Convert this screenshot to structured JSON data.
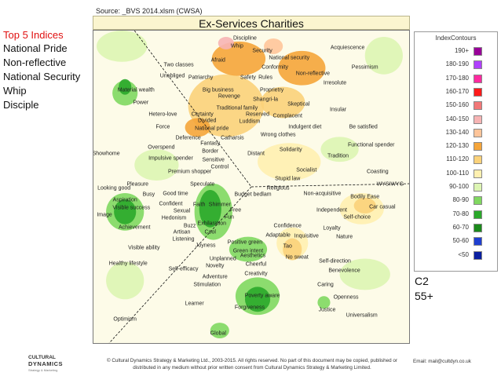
{
  "header": {
    "source": "Source: _BVS 2014.xlsm (CWSA)"
  },
  "left_panel": {
    "heading": "Top 5 Indices",
    "items": [
      "National Pride",
      "Non-reflective",
      "National Security",
      "Whip",
      "Disciple"
    ]
  },
  "segment": {
    "line1": "C2",
    "line2": "55+"
  },
  "footer": {
    "copyright": "© Cultural Dynamics Strategy & Marketing Ltd., 2003-2015. All rights reserved. No part of this document may be copied, published or distributed in any medium without prior written consent from Cultural Dynamics Strategy & Marketing Limited.",
    "email": "Email: mail@cultdyn.co.uk",
    "logo_line1": "CULTURAL",
    "logo_line2": "DYNAMICS",
    "logo_line3": "Strategy & Marketing"
  },
  "colors": {
    "plot_background": "#fdfbe8",
    "title_background": "#fbf5cf",
    "left_heading": "#e01010",
    "divider_line": "#111111"
  },
  "chart_data": {
    "type": "heatmap",
    "title": "Ex-Services Charities",
    "legend": {
      "title": "IndexContours",
      "placement": "right",
      "entries": [
        {
          "label": "190+",
          "color": "#990099"
        },
        {
          "label": "180-190",
          "color": "#b040ff"
        },
        {
          "label": "170-180",
          "color": "#ff2aa0"
        },
        {
          "label": "160-170",
          "color": "#ff1a1a"
        },
        {
          "label": "150-160",
          "color": "#f27878"
        },
        {
          "label": "140-150",
          "color": "#f7b4b4"
        },
        {
          "label": "130-140",
          "color": "#ffc59a"
        },
        {
          "label": "120-130",
          "color": "#f5a53a"
        },
        {
          "label": "110-120",
          "color": "#fbd27a"
        },
        {
          "label": "100-110",
          "color": "#fff0b0"
        },
        {
          "label": "90-100",
          "color": "#ddf5b3"
        },
        {
          "label": "80-90",
          "color": "#80d860"
        },
        {
          "label": "70-80",
          "color": "#2aa82a"
        },
        {
          "label": "60-70",
          "color": "#1b8a1b"
        },
        {
          "label": "50-60",
          "color": "#1f3fd0"
        },
        {
          "label": "<50",
          "color": "#0a1fa0"
        }
      ]
    },
    "value_labels": [
      {
        "text": "Discipline",
        "x": 0.48,
        "y": 0.025
      },
      {
        "text": "Whip",
        "x": 0.455,
        "y": 0.05
      },
      {
        "text": "Security",
        "x": 0.535,
        "y": 0.065
      },
      {
        "text": "Acquiescence",
        "x": 0.805,
        "y": 0.055
      },
      {
        "text": "National security",
        "x": 0.62,
        "y": 0.087
      },
      {
        "text": "Afraid",
        "x": 0.395,
        "y": 0.095
      },
      {
        "text": "Two classes",
        "x": 0.27,
        "y": 0.11
      },
      {
        "text": "Conformity",
        "x": 0.575,
        "y": 0.118
      },
      {
        "text": "Pessimism",
        "x": 0.86,
        "y": 0.118
      },
      {
        "text": "Non-reflective",
        "x": 0.695,
        "y": 0.138
      },
      {
        "text": "Unobliged",
        "x": 0.25,
        "y": 0.145
      },
      {
        "text": "Patriarchy",
        "x": 0.34,
        "y": 0.152
      },
      {
        "text": "Safety",
        "x": 0.49,
        "y": 0.152
      },
      {
        "text": "Rules",
        "x": 0.545,
        "y": 0.152
      },
      {
        "text": "Irresolute",
        "x": 0.765,
        "y": 0.168
      },
      {
        "text": "Material wealth",
        "x": 0.135,
        "y": 0.19
      },
      {
        "text": "Big business",
        "x": 0.395,
        "y": 0.19
      },
      {
        "text": "Proprietry",
        "x": 0.565,
        "y": 0.19
      },
      {
        "text": "Revenge",
        "x": 0.43,
        "y": 0.21
      },
      {
        "text": "Shangri-la",
        "x": 0.545,
        "y": 0.222
      },
      {
        "text": "Power",
        "x": 0.15,
        "y": 0.232
      },
      {
        "text": "Skeptical",
        "x": 0.65,
        "y": 0.235
      },
      {
        "text": "Traditional family",
        "x": 0.455,
        "y": 0.248
      },
      {
        "text": "Insular",
        "x": 0.775,
        "y": 0.255
      },
      {
        "text": "Hetero-love",
        "x": 0.22,
        "y": 0.268
      },
      {
        "text": "Certainty",
        "x": 0.345,
        "y": 0.268
      },
      {
        "text": "Reserved",
        "x": 0.52,
        "y": 0.27
      },
      {
        "text": "Complacent",
        "x": 0.615,
        "y": 0.275
      },
      {
        "text": "Divided",
        "x": 0.36,
        "y": 0.29
      },
      {
        "text": "Luddism",
        "x": 0.495,
        "y": 0.292
      },
      {
        "text": "Force",
        "x": 0.22,
        "y": 0.308
      },
      {
        "text": "National pride",
        "x": 0.375,
        "y": 0.315
      },
      {
        "text": "Indulgent diet",
        "x": 0.67,
        "y": 0.308
      },
      {
        "text": "Be satisfied",
        "x": 0.855,
        "y": 0.308
      },
      {
        "text": "Wrong clothes",
        "x": 0.585,
        "y": 0.335
      },
      {
        "text": "Deference",
        "x": 0.3,
        "y": 0.345
      },
      {
        "text": "Catharsis",
        "x": 0.44,
        "y": 0.345
      },
      {
        "text": "Fantasy",
        "x": 0.37,
        "y": 0.362
      },
      {
        "text": "Overspend",
        "x": 0.215,
        "y": 0.375
      },
      {
        "text": "Functional spender",
        "x": 0.88,
        "y": 0.368
      },
      {
        "text": "Solidarity",
        "x": 0.625,
        "y": 0.382
      },
      {
        "text": "Showhome",
        "x": 0.04,
        "y": 0.395
      },
      {
        "text": "Border",
        "x": 0.37,
        "y": 0.388
      },
      {
        "text": "Distant",
        "x": 0.515,
        "y": 0.395
      },
      {
        "text": "Tradition",
        "x": 0.775,
        "y": 0.402
      },
      {
        "text": "Impulsive spender",
        "x": 0.245,
        "y": 0.41
      },
      {
        "text": "Sensitive",
        "x": 0.38,
        "y": 0.415
      },
      {
        "text": "Control",
        "x": 0.4,
        "y": 0.438
      },
      {
        "text": "Premium shopper",
        "x": 0.305,
        "y": 0.452
      },
      {
        "text": "Socialist",
        "x": 0.675,
        "y": 0.448
      },
      {
        "text": "Coasting",
        "x": 0.9,
        "y": 0.452
      },
      {
        "text": "Stupid law",
        "x": 0.615,
        "y": 0.475
      },
      {
        "text": "Pleasure",
        "x": 0.14,
        "y": 0.492
      },
      {
        "text": "Speculate",
        "x": 0.345,
        "y": 0.492
      },
      {
        "text": "WYSIWYG",
        "x": 0.94,
        "y": 0.492
      },
      {
        "text": "Looking good",
        "x": 0.065,
        "y": 0.505
      },
      {
        "text": "Religious",
        "x": 0.585,
        "y": 0.505
      },
      {
        "text": "Busy",
        "x": 0.175,
        "y": 0.525
      },
      {
        "text": "Good time",
        "x": 0.26,
        "y": 0.522
      },
      {
        "text": "Budget bedlam",
        "x": 0.505,
        "y": 0.525
      },
      {
        "text": "Non-acquisitive",
        "x": 0.725,
        "y": 0.522
      },
      {
        "text": "Bodily Ease",
        "x": 0.86,
        "y": 0.532
      },
      {
        "text": "Aspiration",
        "x": 0.1,
        "y": 0.542
      },
      {
        "text": "Confident",
        "x": 0.245,
        "y": 0.555
      },
      {
        "text": "Faith",
        "x": 0.335,
        "y": 0.558
      },
      {
        "text": "Shimmer",
        "x": 0.4,
        "y": 0.558
      },
      {
        "text": "Visible success",
        "x": 0.12,
        "y": 0.568
      },
      {
        "text": "Sexual",
        "x": 0.28,
        "y": 0.578
      },
      {
        "text": "Free",
        "x": 0.45,
        "y": 0.575
      },
      {
        "text": "Car casual",
        "x": 0.915,
        "y": 0.565
      },
      {
        "text": "Independent",
        "x": 0.755,
        "y": 0.575
      },
      {
        "text": "Image",
        "x": 0.035,
        "y": 0.59
      },
      {
        "text": "Hedonism",
        "x": 0.255,
        "y": 0.6
      },
      {
        "text": "Fun",
        "x": 0.43,
        "y": 0.598
      },
      {
        "text": "Self-choice",
        "x": 0.835,
        "y": 0.598
      },
      {
        "text": "Exhilaration",
        "x": 0.375,
        "y": 0.618
      },
      {
        "text": "Buzz",
        "x": 0.305,
        "y": 0.625
      },
      {
        "text": "Achievement",
        "x": 0.13,
        "y": 0.63
      },
      {
        "text": "Confidence",
        "x": 0.615,
        "y": 0.625
      },
      {
        "text": "Loyalty",
        "x": 0.755,
        "y": 0.632
      },
      {
        "text": "Artisan",
        "x": 0.28,
        "y": 0.645
      },
      {
        "text": "Cool",
        "x": 0.37,
        "y": 0.645
      },
      {
        "text": "Adaptable",
        "x": 0.585,
        "y": 0.655
      },
      {
        "text": "Inquisitive",
        "x": 0.675,
        "y": 0.658
      },
      {
        "text": "Nature",
        "x": 0.795,
        "y": 0.662
      },
      {
        "text": "Listening",
        "x": 0.285,
        "y": 0.668
      },
      {
        "text": "Positive green",
        "x": 0.48,
        "y": 0.678
      },
      {
        "text": "Joyness",
        "x": 0.355,
        "y": 0.688
      },
      {
        "text": "Tao",
        "x": 0.615,
        "y": 0.69
      },
      {
        "text": "Visible ability",
        "x": 0.16,
        "y": 0.695
      },
      {
        "text": "Green intent",
        "x": 0.49,
        "y": 0.705
      },
      {
        "text": "Aesthetics",
        "x": 0.505,
        "y": 0.722
      },
      {
        "text": "No sweat",
        "x": 0.645,
        "y": 0.725
      },
      {
        "text": "Unplanned",
        "x": 0.41,
        "y": 0.73
      },
      {
        "text": "Self-direction",
        "x": 0.765,
        "y": 0.738
      },
      {
        "text": "Healthy lifestyle",
        "x": 0.11,
        "y": 0.745
      },
      {
        "text": "Cheerful",
        "x": 0.515,
        "y": 0.748
      },
      {
        "text": "Novelty",
        "x": 0.385,
        "y": 0.755
      },
      {
        "text": "Self-efficacy",
        "x": 0.285,
        "y": 0.765
      },
      {
        "text": "Benevolence",
        "x": 0.795,
        "y": 0.768
      },
      {
        "text": "Creativity",
        "x": 0.515,
        "y": 0.78
      },
      {
        "text": "Adventure",
        "x": 0.385,
        "y": 0.79
      },
      {
        "text": "Stimulation",
        "x": 0.36,
        "y": 0.815
      },
      {
        "text": "Caring",
        "x": 0.735,
        "y": 0.815
      },
      {
        "text": "Poverty aware",
        "x": 0.535,
        "y": 0.848
      },
      {
        "text": "Openness",
        "x": 0.8,
        "y": 0.855
      },
      {
        "text": "Learner",
        "x": 0.32,
        "y": 0.875
      },
      {
        "text": "Forgiveness",
        "x": 0.495,
        "y": 0.888
      },
      {
        "text": "Justice",
        "x": 0.74,
        "y": 0.895
      },
      {
        "text": "Universalism",
        "x": 0.85,
        "y": 0.912
      },
      {
        "text": "Optimism",
        "x": 0.1,
        "y": 0.925
      },
      {
        "text": "Global",
        "x": 0.395,
        "y": 0.97
      }
    ],
    "contour_regions": [
      {
        "band": "120-130",
        "cx": 0.46,
        "cy": 0.09,
        "rx": 0.085,
        "ry": 0.055
      },
      {
        "band": "120-130",
        "cx": 0.66,
        "cy": 0.12,
        "rx": 0.075,
        "ry": 0.055
      },
      {
        "band": "140-150",
        "cx": 0.42,
        "cy": 0.04,
        "rx": 0.025,
        "ry": 0.02
      },
      {
        "band": "130-140",
        "cx": 0.57,
        "cy": 0.05,
        "rx": 0.03,
        "ry": 0.025
      },
      {
        "band": "110-120",
        "cx": 0.42,
        "cy": 0.24,
        "rx": 0.12,
        "ry": 0.1
      },
      {
        "band": "110-120",
        "cx": 0.6,
        "cy": 0.23,
        "rx": 0.07,
        "ry": 0.05
      },
      {
        "band": "100-110",
        "cx": 0.62,
        "cy": 0.42,
        "rx": 0.1,
        "ry": 0.06
      },
      {
        "band": "120-130",
        "cx": 0.33,
        "cy": 0.31,
        "rx": 0.04,
        "ry": 0.03
      },
      {
        "band": "90-100",
        "cx": 0.92,
        "cy": 0.08,
        "rx": 0.06,
        "ry": 0.06
      },
      {
        "band": "90-100",
        "cx": 0.09,
        "cy": 0.05,
        "rx": 0.08,
        "ry": 0.05
      },
      {
        "band": "80-90",
        "cx": 0.1,
        "cy": 0.2,
        "rx": 0.04,
        "ry": 0.04
      },
      {
        "band": "70-80",
        "cx": 0.1,
        "cy": 0.18,
        "rx": 0.02,
        "ry": 0.025
      },
      {
        "band": "90-100",
        "cx": 0.2,
        "cy": 0.43,
        "rx": 0.07,
        "ry": 0.05
      },
      {
        "band": "100-110",
        "cx": 0.85,
        "cy": 0.57,
        "rx": 0.07,
        "ry": 0.05
      },
      {
        "band": "110-120",
        "cx": 0.86,
        "cy": 0.56,
        "rx": 0.035,
        "ry": 0.025
      },
      {
        "band": "80-90",
        "cx": 0.1,
        "cy": 0.58,
        "rx": 0.06,
        "ry": 0.06
      },
      {
        "band": "70-80",
        "cx": 0.1,
        "cy": 0.58,
        "rx": 0.035,
        "ry": 0.04
      },
      {
        "band": "80-90",
        "cx": 0.38,
        "cy": 0.58,
        "rx": 0.06,
        "ry": 0.09
      },
      {
        "band": "70-80",
        "cx": 0.37,
        "cy": 0.57,
        "rx": 0.035,
        "ry": 0.06
      },
      {
        "band": "80-90",
        "cx": 0.49,
        "cy": 0.7,
        "rx": 0.06,
        "ry": 0.04
      },
      {
        "band": "100-110",
        "cx": 0.63,
        "cy": 0.68,
        "rx": 0.05,
        "ry": 0.05
      },
      {
        "band": "110-120",
        "cx": 0.63,
        "cy": 0.7,
        "rx": 0.03,
        "ry": 0.035
      },
      {
        "band": "80-90",
        "cx": 0.52,
        "cy": 0.85,
        "rx": 0.07,
        "ry": 0.06
      },
      {
        "band": "70-80",
        "cx": 0.52,
        "cy": 0.86,
        "rx": 0.04,
        "ry": 0.04
      },
      {
        "band": "80-90",
        "cx": 0.4,
        "cy": 0.96,
        "rx": 0.03,
        "ry": 0.025
      },
      {
        "band": "80-90",
        "cx": 0.73,
        "cy": 0.87,
        "rx": 0.02,
        "ry": 0.02
      },
      {
        "band": "90-100",
        "cx": 0.86,
        "cy": 0.78,
        "rx": 0.08,
        "ry": 0.05
      },
      {
        "band": "90-100",
        "cx": 0.78,
        "cy": 0.38,
        "rx": 0.06,
        "ry": 0.04
      },
      {
        "band": "90-100",
        "cx": 0.1,
        "cy": 0.8,
        "rx": 0.06,
        "ry": 0.06
      }
    ],
    "divider_lines": [
      {
        "from": [
          0.13,
          0.0
        ],
        "to": [
          0.5,
          0.5
        ]
      },
      {
        "from": [
          0.5,
          0.5
        ],
        "to": [
          1.0,
          0.49
        ]
      },
      {
        "from": [
          0.5,
          0.5
        ],
        "to": [
          0.05,
          1.0
        ]
      }
    ]
  }
}
